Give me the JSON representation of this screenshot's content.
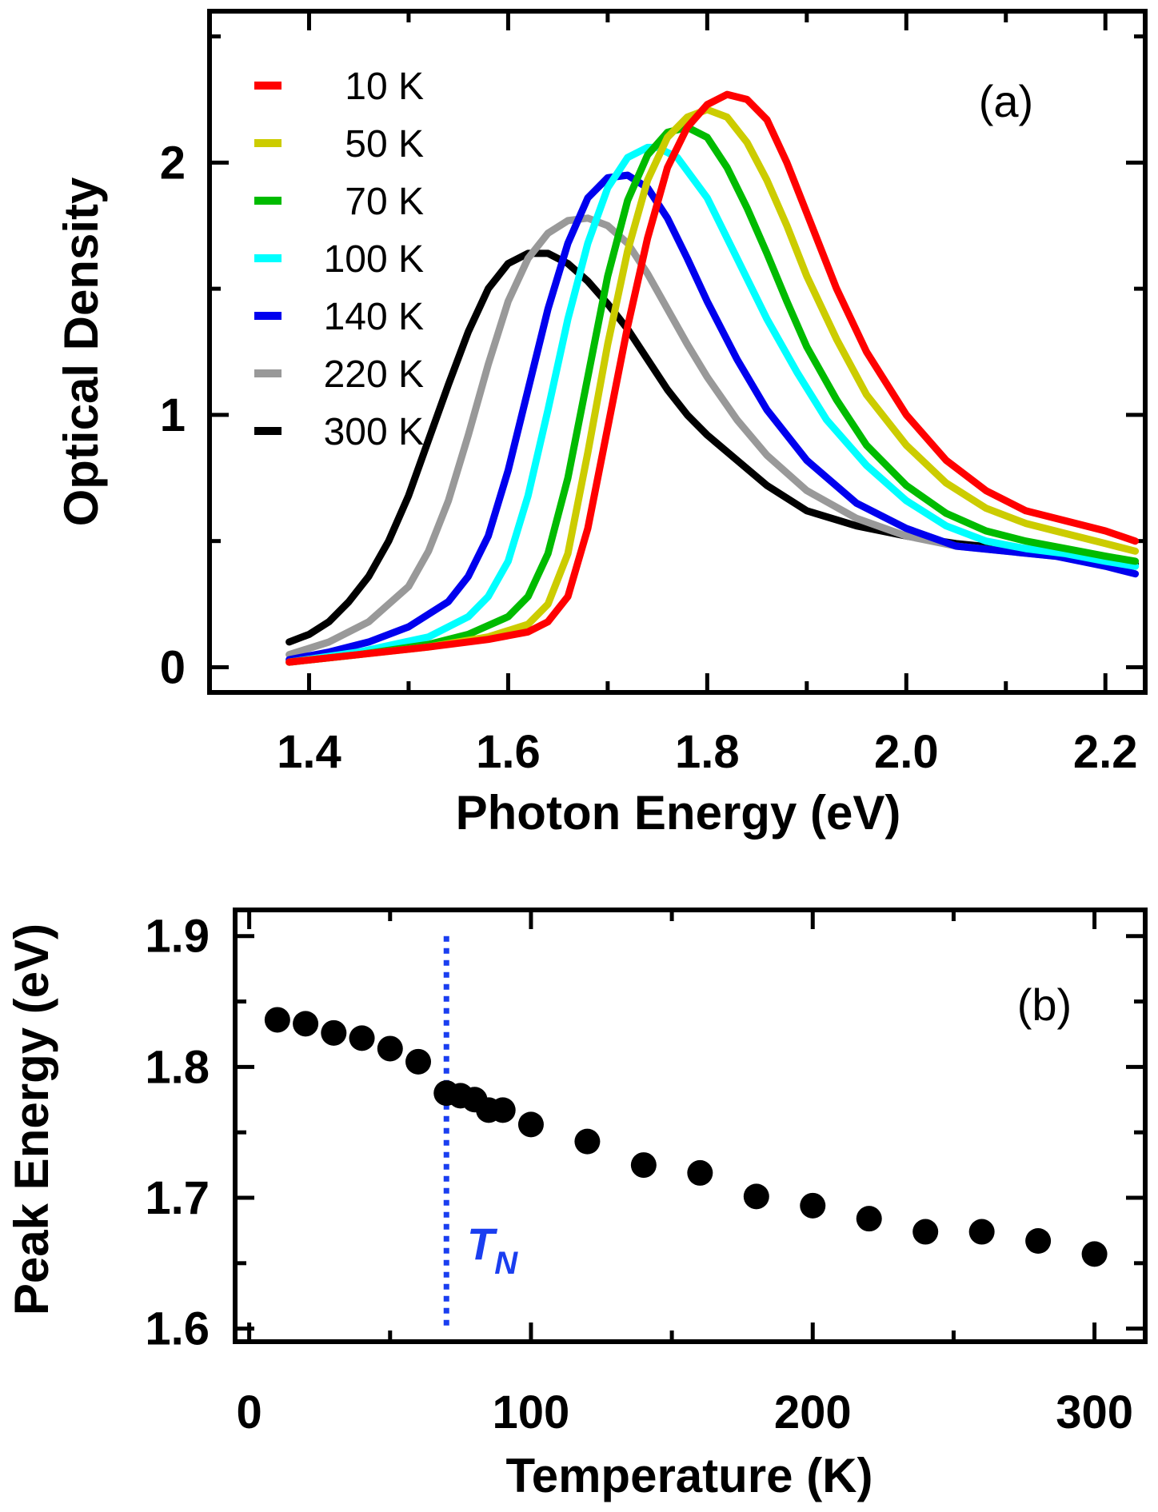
{
  "chart_data": [
    {
      "type": "line",
      "panel_label": "(a)",
      "xlabel": "Photon Energy (eV)",
      "ylabel": "Optical Density",
      "xlim": [
        1.3,
        2.24
      ],
      "ylim": [
        -0.1,
        2.6
      ],
      "x_major_ticks": [
        "1.4",
        "1.6",
        "1.8",
        "2.0",
        "2.2"
      ],
      "y_major_ticks": [
        "0",
        "1",
        "2"
      ],
      "legend_position": "top-left",
      "series": [
        {
          "name": "10 K",
          "color": "#ff0000",
          "x": [
            1.38,
            1.45,
            1.52,
            1.58,
            1.62,
            1.64,
            1.66,
            1.68,
            1.7,
            1.72,
            1.74,
            1.76,
            1.78,
            1.8,
            1.82,
            1.84,
            1.86,
            1.88,
            1.9,
            1.93,
            1.96,
            2.0,
            2.04,
            2.08,
            2.12,
            2.16,
            2.2,
            2.23
          ],
          "y": [
            0.02,
            0.05,
            0.08,
            0.11,
            0.14,
            0.18,
            0.28,
            0.55,
            0.95,
            1.35,
            1.7,
            1.98,
            2.14,
            2.23,
            2.27,
            2.25,
            2.17,
            2.0,
            1.8,
            1.5,
            1.25,
            1.0,
            0.82,
            0.7,
            0.62,
            0.58,
            0.54,
            0.5
          ]
        },
        {
          "name": "50 K",
          "color": "#cccc00",
          "x": [
            1.38,
            1.45,
            1.52,
            1.58,
            1.62,
            1.64,
            1.66,
            1.68,
            1.7,
            1.72,
            1.74,
            1.76,
            1.78,
            1.8,
            1.82,
            1.84,
            1.86,
            1.88,
            1.9,
            1.93,
            1.96,
            2.0,
            2.04,
            2.08,
            2.12,
            2.16,
            2.2,
            2.23
          ],
          "y": [
            0.02,
            0.05,
            0.08,
            0.12,
            0.17,
            0.25,
            0.45,
            0.85,
            1.28,
            1.65,
            1.93,
            2.1,
            2.18,
            2.21,
            2.18,
            2.08,
            1.93,
            1.75,
            1.55,
            1.3,
            1.08,
            0.88,
            0.73,
            0.63,
            0.57,
            0.53,
            0.49,
            0.46
          ]
        },
        {
          "name": "70 K",
          "color": "#00bb00",
          "x": [
            1.38,
            1.45,
            1.52,
            1.56,
            1.6,
            1.62,
            1.64,
            1.66,
            1.68,
            1.7,
            1.72,
            1.74,
            1.76,
            1.78,
            1.8,
            1.82,
            1.84,
            1.86,
            1.88,
            1.9,
            1.93,
            1.96,
            2.0,
            2.04,
            2.08,
            2.12,
            2.16,
            2.2,
            2.23
          ],
          "y": [
            0.02,
            0.05,
            0.09,
            0.13,
            0.2,
            0.28,
            0.45,
            0.75,
            1.15,
            1.55,
            1.85,
            2.03,
            2.12,
            2.14,
            2.1,
            1.98,
            1.82,
            1.64,
            1.45,
            1.27,
            1.06,
            0.88,
            0.72,
            0.61,
            0.54,
            0.5,
            0.47,
            0.44,
            0.42
          ]
        },
        {
          "name": "100 K",
          "color": "#00ffff",
          "x": [
            1.38,
            1.45,
            1.52,
            1.56,
            1.58,
            1.6,
            1.62,
            1.64,
            1.66,
            1.68,
            1.7,
            1.72,
            1.74,
            1.75,
            1.77,
            1.8,
            1.83,
            1.86,
            1.89,
            1.92,
            1.96,
            2.0,
            2.04,
            2.08,
            2.12,
            2.16,
            2.2,
            2.23
          ],
          "y": [
            0.02,
            0.06,
            0.12,
            0.2,
            0.28,
            0.42,
            0.68,
            1.02,
            1.38,
            1.68,
            1.9,
            2.02,
            2.06,
            2.06,
            2.02,
            1.86,
            1.62,
            1.38,
            1.17,
            0.98,
            0.8,
            0.66,
            0.56,
            0.5,
            0.47,
            0.45,
            0.42,
            0.4
          ]
        },
        {
          "name": "140 K",
          "color": "#0000ee",
          "x": [
            1.38,
            1.42,
            1.46,
            1.5,
            1.54,
            1.56,
            1.58,
            1.6,
            1.62,
            1.64,
            1.66,
            1.68,
            1.7,
            1.72,
            1.74,
            1.76,
            1.78,
            1.8,
            1.83,
            1.86,
            1.9,
            1.95,
            2.0,
            2.05,
            2.1,
            2.15,
            2.2,
            2.23
          ],
          "y": [
            0.03,
            0.06,
            0.1,
            0.16,
            0.26,
            0.36,
            0.52,
            0.78,
            1.1,
            1.42,
            1.68,
            1.86,
            1.94,
            1.95,
            1.9,
            1.78,
            1.62,
            1.45,
            1.22,
            1.02,
            0.82,
            0.65,
            0.55,
            0.48,
            0.46,
            0.44,
            0.4,
            0.37
          ]
        },
        {
          "name": "220 K",
          "color": "#999999",
          "x": [
            1.38,
            1.42,
            1.46,
            1.5,
            1.52,
            1.54,
            1.56,
            1.58,
            1.6,
            1.62,
            1.64,
            1.66,
            1.68,
            1.7,
            1.72,
            1.74,
            1.76,
            1.78,
            1.8,
            1.83,
            1.86,
            1.9,
            1.95,
            2.0,
            2.05,
            2.1,
            2.15,
            2.2,
            2.23
          ],
          "y": [
            0.05,
            0.1,
            0.18,
            0.32,
            0.46,
            0.66,
            0.92,
            1.2,
            1.45,
            1.62,
            1.72,
            1.77,
            1.78,
            1.75,
            1.68,
            1.56,
            1.42,
            1.28,
            1.15,
            0.98,
            0.84,
            0.7,
            0.59,
            0.52,
            0.48,
            0.46,
            0.44,
            0.42,
            0.4
          ]
        },
        {
          "name": "300 K",
          "color": "#000000",
          "x": [
            1.38,
            1.4,
            1.42,
            1.44,
            1.46,
            1.48,
            1.5,
            1.52,
            1.54,
            1.56,
            1.58,
            1.6,
            1.62,
            1.64,
            1.66,
            1.68,
            1.7,
            1.72,
            1.74,
            1.76,
            1.78,
            1.8,
            1.83,
            1.86,
            1.9,
            1.95,
            2.0,
            2.05,
            2.1,
            2.15,
            2.2,
            2.23
          ],
          "y": [
            0.1,
            0.13,
            0.18,
            0.26,
            0.36,
            0.5,
            0.68,
            0.9,
            1.12,
            1.33,
            1.5,
            1.6,
            1.64,
            1.64,
            1.6,
            1.53,
            1.44,
            1.34,
            1.22,
            1.1,
            1.0,
            0.92,
            0.82,
            0.72,
            0.62,
            0.56,
            0.52,
            0.49,
            0.47,
            0.45,
            0.43,
            0.41
          ]
        }
      ]
    },
    {
      "type": "scatter",
      "panel_label": "(b)",
      "xlabel": "Temperature (K)",
      "ylabel": "Peak Energy (eV)",
      "xlim": [
        -5,
        318
      ],
      "ylim": [
        1.59,
        1.92
      ],
      "x_major_ticks": [
        "0",
        "100",
        "200",
        "300"
      ],
      "y_major_ticks": [
        "1.6",
        "1.7",
        "1.8",
        "1.9"
      ],
      "annotation": {
        "text": "T",
        "subscript": "N",
        "x": 70,
        "line_color": "#1a3ef0"
      },
      "series": [
        {
          "name": "Peak Energy",
          "color": "#000000",
          "x": [
            10,
            20,
            30,
            40,
            50,
            60,
            70,
            75,
            80,
            85,
            90,
            100,
            120,
            140,
            160,
            180,
            200,
            220,
            240,
            260,
            280,
            300
          ],
          "y": [
            1.836,
            1.833,
            1.826,
            1.822,
            1.814,
            1.804,
            1.78,
            1.778,
            1.775,
            1.767,
            1.767,
            1.756,
            1.743,
            1.725,
            1.719,
            1.701,
            1.694,
            1.684,
            1.674,
            1.674,
            1.667,
            1.657
          ]
        }
      ]
    }
  ]
}
